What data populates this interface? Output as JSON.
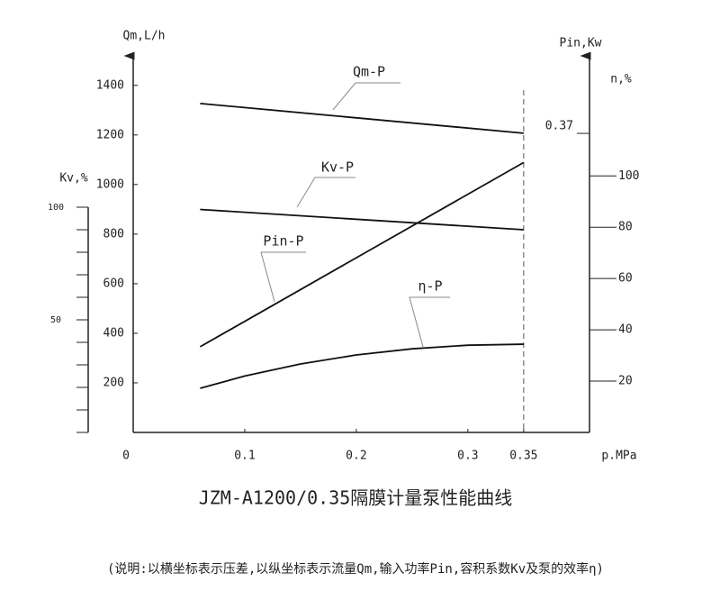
{
  "chart_data": {
    "type": "line",
    "title": "JZM-A1200/0.35隔膜计量泵性能曲线",
    "note": "(说明:以横坐标表示压差,以纵坐标表示流量Qm,输入功率Pin,容积系数Kv及泵的效率η)",
    "xlabel": "p.MPa",
    "ylabel": "Qm,L/h",
    "y2label": "n,%",
    "pinlabel": "Pin,Kw",
    "kvlabel": "Kv,%",
    "xlim": [
      0,
      0.409
    ],
    "xticks": [
      0,
      0.1,
      0.2,
      0.3,
      0.35
    ],
    "ylim": [
      0,
      1490
    ],
    "yticks": [
      200,
      400,
      600,
      800,
      1000,
      1200,
      1400
    ],
    "y2lim": [
      0,
      144
    ],
    "y2ticks": [
      20,
      40,
      60,
      80,
      100
    ],
    "pinlim": [
      0,
      0.457
    ],
    "pinticks": [
      0.37
    ],
    "kvlim": [
      0,
      164
    ],
    "kvticks": [
      100,
      50
    ],
    "kvminor": [
      0,
      10,
      20,
      30,
      40,
      50,
      60,
      70,
      80,
      90,
      100
    ],
    "rated_pressure": 0.35,
    "series": [
      {
        "name": "Qm-P",
        "axis": "y",
        "color": "#111",
        "x": [
          0.06,
          0.35
        ],
        "values": [
          1327,
          1207
        ]
      },
      {
        "name": "Kv-P",
        "axis": "kv",
        "color": "#111",
        "x": [
          0.06,
          0.35
        ],
        "values": [
          99,
          90
        ]
      },
      {
        "name": "Pin-P",
        "axis": "pin",
        "color": "#111",
        "x": [
          0.06,
          0.35
        ],
        "values": [
          0.106,
          0.334
        ]
      },
      {
        "name": "η-P",
        "axis": "y2",
        "color": "#111",
        "x": [
          0.06,
          0.1,
          0.15,
          0.2,
          0.25,
          0.3,
          0.35
        ],
        "values": [
          17.2,
          22,
          26.7,
          30.2,
          32.6,
          34,
          34.4
        ]
      }
    ]
  }
}
